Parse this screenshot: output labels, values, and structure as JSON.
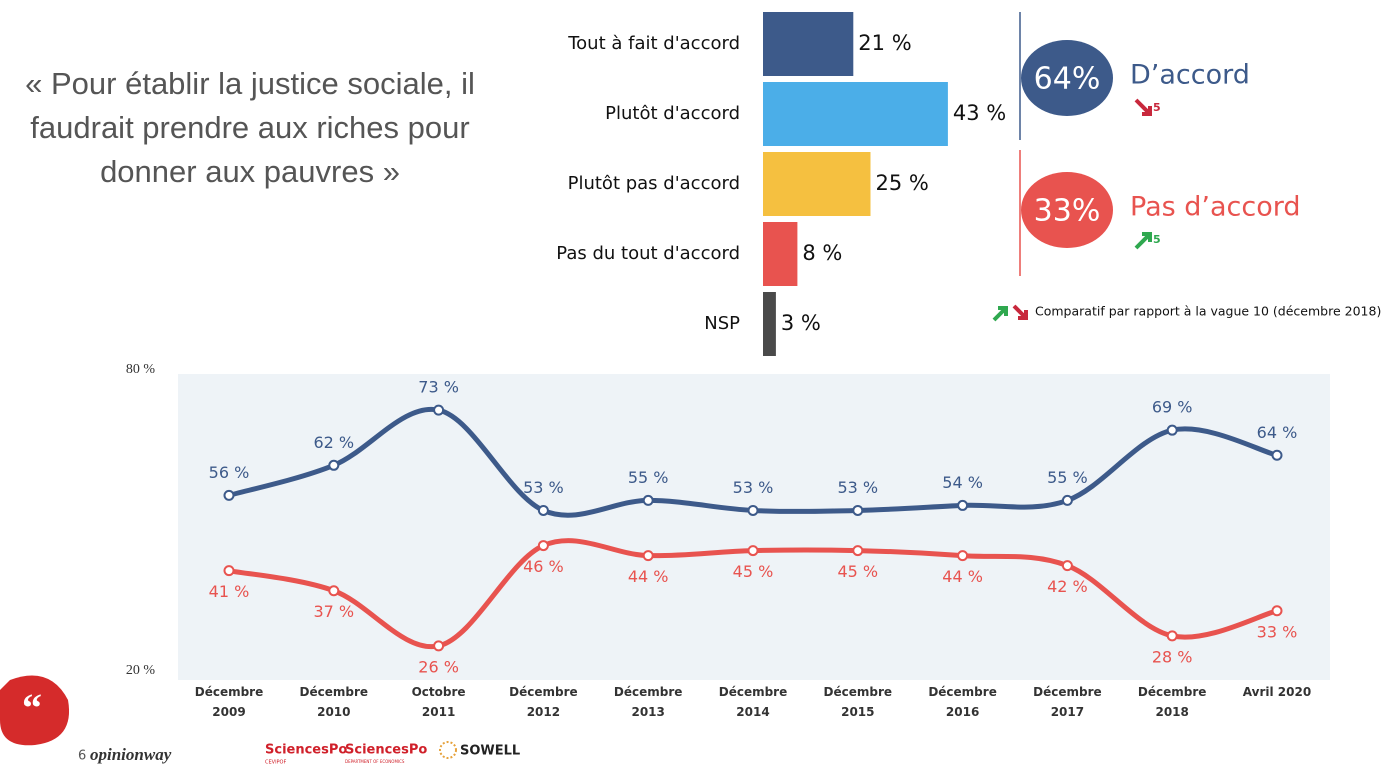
{
  "quote": "« Pour établir la justice sociale, il faudrait prendre aux riches pour donner aux pauvres »",
  "chart_data": [
    {
      "type": "hbar",
      "categories": [
        "Tout à fait d'accord",
        "Plutôt d'accord",
        "Plutôt pas d'accord",
        "Pas du tout d'accord",
        "NSP"
      ],
      "values": [
        21,
        43,
        25,
        8,
        3
      ],
      "value_labels": [
        "21 %",
        "43 %",
        "25 %",
        "8 %",
        "3 %"
      ],
      "colors": [
        "#3d5a8a",
        "#4baee8",
        "#f5c040",
        "#e8534f",
        "#4a4a4a"
      ]
    },
    {
      "type": "line",
      "categories": [
        "Décembre 2009",
        "Décembre 2010",
        "Octobre 2011",
        "Décembre 2012",
        "Décembre 2013",
        "Décembre 2014",
        "Décembre 2015",
        "Décembre 2016",
        "Décembre 2017",
        "Décembre 2018",
        "Avril 2020"
      ],
      "ylim": [
        20,
        80
      ],
      "yticks": [
        {
          "value": 80,
          "label": "80 %"
        },
        {
          "value": 20,
          "label": "20 %"
        }
      ],
      "series": [
        {
          "color": "#3d5a8a",
          "values": [
            56,
            62,
            73,
            53,
            55,
            53,
            53,
            54,
            55,
            69,
            64
          ],
          "value_labels": [
            "56 %",
            "62 %",
            "73 %",
            "53 %",
            "55 %",
            "53 %",
            "53 %",
            "54 %",
            "55 %",
            "69 %",
            "64 %"
          ]
        },
        {
          "color": "#e8534f",
          "values": [
            41,
            37,
            26,
            46,
            44,
            45,
            45,
            44,
            42,
            28,
            33
          ],
          "value_labels": [
            "41 %",
            "37 %",
            "26 %",
            "46 %",
            "44 %",
            "45 %",
            "45 %",
            "44 %",
            "42 %",
            "28 %",
            "33 %"
          ]
        }
      ]
    }
  ],
  "summary": [
    {
      "total": "64%",
      "label": "D’accord",
      "change": "5",
      "color": "#3d5a8a"
    },
    {
      "total": "33%",
      "label": "Pas d’accord",
      "change": "5",
      "color": "#e8534f"
    }
  ],
  "note": "Comparatif par rapport à la vague 10 (décembre 2018)",
  "footer": {
    "page": "6",
    "brand": "opinionway",
    "logo1": "SciencesPo",
    "logo1_sub": "CEVIPOF",
    "logo2": "SciencesPo",
    "logo2_sub": "DEPARTMENT OF ECONOMICS",
    "logo3": "SOWELL"
  }
}
